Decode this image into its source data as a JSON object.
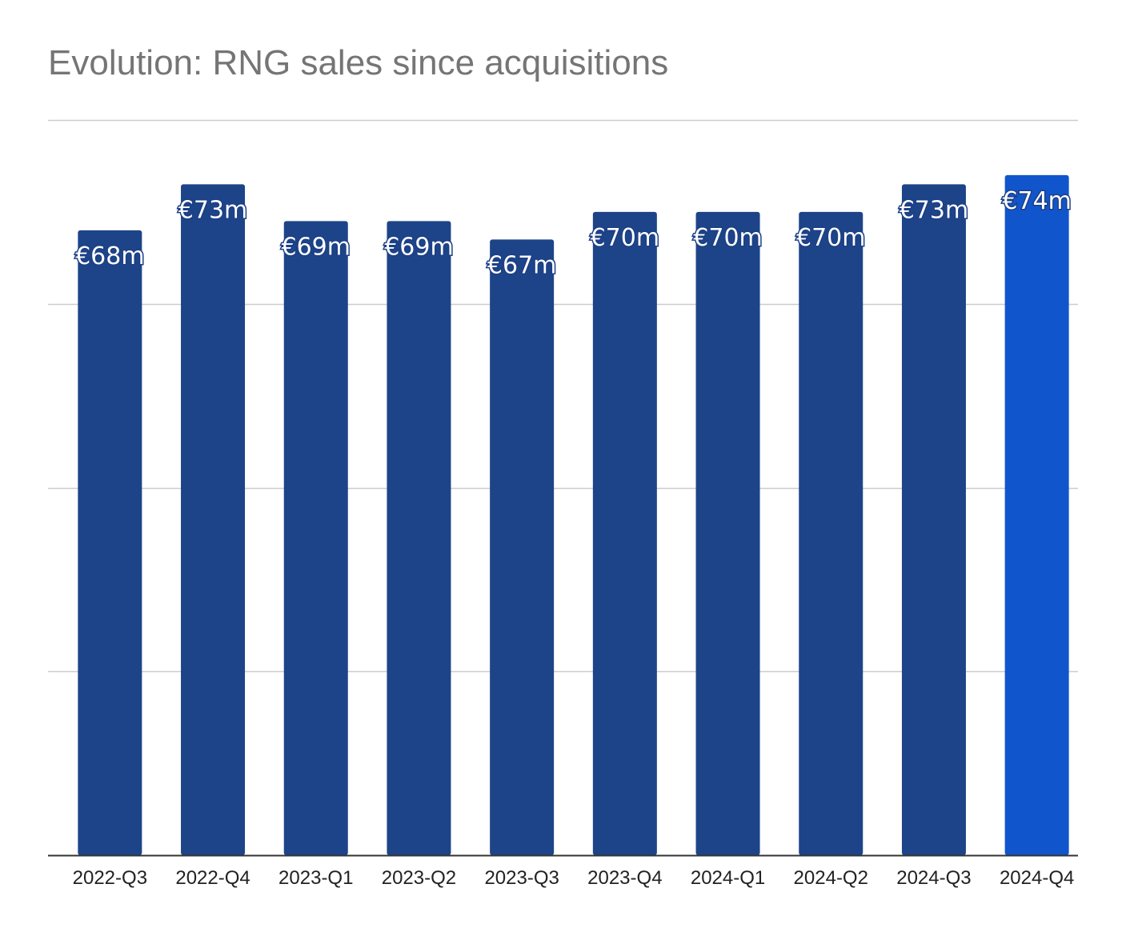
{
  "chart_data": {
    "type": "bar",
    "title": "Evolution: RNG sales since acquisitions",
    "xlabel": "",
    "ylabel": "",
    "categories": [
      "2022-Q3",
      "2022-Q4",
      "2023-Q1",
      "2023-Q2",
      "2023-Q3",
      "2023-Q4",
      "2024-Q1",
      "2024-Q2",
      "2024-Q3",
      "2024-Q4"
    ],
    "values": [
      68,
      73,
      69,
      69,
      67,
      70,
      70,
      70,
      73,
      74
    ],
    "data_labels": [
      "€68m",
      "€73m",
      "€69m",
      "€69m",
      "€67m",
      "€70m",
      "€70m",
      "€70m",
      "€73m",
      "€74m"
    ],
    "ylim": [
      0,
      80
    ],
    "gridlines": [
      20,
      40,
      60,
      80
    ],
    "y_tick_labels_shown": false,
    "grid": true,
    "legend": "none",
    "colors": {
      "bar": "#1d4488",
      "highlight_bar": "#1155cc",
      "title": "#757575",
      "grid": "#cccccc",
      "axis": "#333333",
      "label_text": "#ffffff",
      "label_outline": "#1c3f85"
    },
    "highlight_index": 9
  }
}
